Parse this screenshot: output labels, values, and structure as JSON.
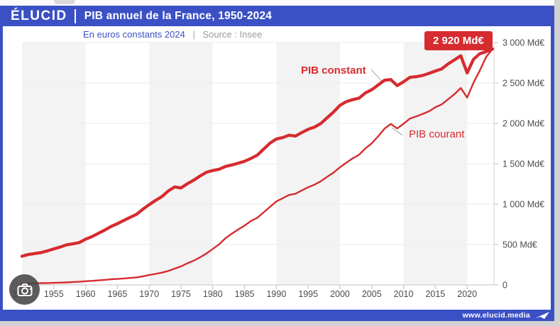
{
  "header": {
    "logo": "ÉLUCID",
    "title": "PIB annuel de la France, 1950-2024"
  },
  "subtitle": {
    "unit_note": "En euros constants 2024",
    "separator": "|",
    "source": "Source : Insee"
  },
  "badge": {
    "label": "2 920 Md€"
  },
  "annotations": {
    "constant_label": "PIB constant",
    "courant_label": "PIB courant"
  },
  "footer": {
    "url": "www.elucid.media"
  },
  "colors": {
    "brand_blue": "#3b50c4",
    "line_red": "#d62b2f",
    "axis_text": "#4c4c4c",
    "stripe_gray": "#f3f3f3",
    "gridline": "#ededed"
  },
  "chart_data": {
    "type": "line",
    "title": "PIB annuel de la France, 1950-2024",
    "subtitle": "En euros constants 2024 | Source : Insee",
    "unit": "Md€",
    "x": [
      1950,
      1951,
      1952,
      1953,
      1954,
      1955,
      1956,
      1957,
      1958,
      1959,
      1960,
      1961,
      1962,
      1963,
      1964,
      1965,
      1966,
      1967,
      1968,
      1969,
      1970,
      1971,
      1972,
      1973,
      1974,
      1975,
      1976,
      1977,
      1978,
      1979,
      1980,
      1981,
      1982,
      1983,
      1984,
      1985,
      1986,
      1987,
      1988,
      1989,
      1990,
      1991,
      1992,
      1993,
      1994,
      1995,
      1996,
      1997,
      1998,
      1999,
      2000,
      2001,
      2002,
      2003,
      2004,
      2005,
      2006,
      2007,
      2008,
      2009,
      2010,
      2011,
      2012,
      2013,
      2014,
      2015,
      2016,
      2017,
      2018,
      2019,
      2020,
      2021,
      2022,
      2023,
      2024
    ],
    "series": [
      {
        "name": "PIB constant",
        "values": [
          354,
          376,
          388,
          400,
          421,
          446,
          468,
          496,
          509,
          524,
          566,
          597,
          638,
          678,
          723,
          758,
          797,
          836,
          874,
          936,
          993,
          1046,
          1093,
          1162,
          1212,
          1200,
          1252,
          1296,
          1348,
          1394,
          1416,
          1432,
          1466,
          1484,
          1506,
          1530,
          1565,
          1606,
          1681,
          1755,
          1806,
          1824,
          1853,
          1842,
          1886,
          1926,
          1953,
          1998,
          2070,
          2140,
          2223,
          2268,
          2293,
          2311,
          2376,
          2416,
          2474,
          2533,
          2541,
          2467,
          2514,
          2569,
          2577,
          2592,
          2618,
          2647,
          2673,
          2735,
          2784,
          2837,
          2624,
          2792,
          2862,
          2888,
          2920
        ]
      },
      {
        "name": "PIB courant",
        "values": [
          15,
          18,
          21,
          22,
          23,
          25,
          28,
          31,
          36,
          39,
          46,
          50,
          56,
          62,
          69,
          74,
          80,
          86,
          93,
          106,
          122,
          136,
          152,
          173,
          201,
          229,
          267,
          300,
          341,
          389,
          445,
          503,
          578,
          634,
          686,
          733,
          791,
          831,
          898,
          966,
          1033,
          1073,
          1113,
          1128,
          1169,
          1209,
          1240,
          1283,
          1339,
          1390,
          1456,
          1512,
          1567,
          1611,
          1689,
          1753,
          1838,
          1933,
          1992,
          1936,
          1995,
          2058,
          2086,
          2115,
          2149,
          2198,
          2234,
          2297,
          2360,
          2437,
          2318,
          2502,
          2655,
          2822,
          2920
        ]
      }
    ],
    "end_value_label": "2 920 Md€",
    "xlim": [
      1950,
      2024
    ],
    "ylim": [
      0,
      3000
    ],
    "xticks": [
      1950,
      1955,
      1960,
      1965,
      1970,
      1975,
      1980,
      1985,
      1990,
      1995,
      2000,
      2005,
      2010,
      2015,
      2020
    ],
    "yticks": [
      0,
      500,
      1000,
      1500,
      2000,
      2500,
      3000
    ],
    "ytick_labels": [
      "0",
      "500 Md€",
      "1 000 Md€",
      "1 500 Md€",
      "2 000 Md€",
      "2 500 Md€",
      "3 000 Md€"
    ],
    "grid": "horizontal",
    "y_axis_side": "right",
    "legend_position": "inline-annotations",
    "striped_decades": [
      [
        1950,
        1960
      ],
      [
        1970,
        1980
      ],
      [
        1990,
        2000
      ],
      [
        2010,
        2020
      ]
    ]
  }
}
